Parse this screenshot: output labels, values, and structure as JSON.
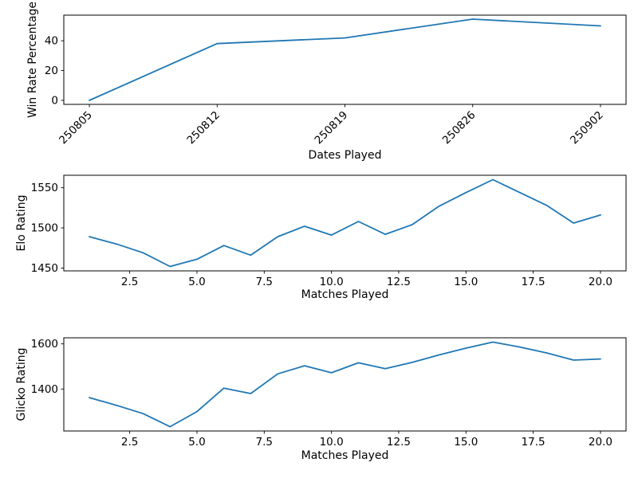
{
  "figure": {
    "background": "#ffffff",
    "line_color": "#1f77b4",
    "axis_color": "#000000"
  },
  "chart_data": [
    {
      "type": "line",
      "name": "win-rate-chart",
      "title": "",
      "xlabel": "Dates Played",
      "ylabel": "Win Rate Percentage",
      "x": [
        1,
        2,
        3,
        4,
        5
      ],
      "x_tick_labels": [
        "250805",
        "250812",
        "250819",
        "250826",
        "250902"
      ],
      "x_tick_rotation": 45,
      "y": [
        0.0,
        38.1,
        41.9,
        54.5,
        50.0
      ],
      "yticks": [
        0,
        20,
        40
      ],
      "xlim": [
        0.8,
        5.2
      ],
      "ylim": [
        -2.7,
        57.2
      ],
      "grid": false,
      "legend": null
    },
    {
      "type": "line",
      "name": "elo-rating-chart",
      "title": "",
      "xlabel": "Matches Played",
      "ylabel": "Elo Rating",
      "x": [
        1,
        2,
        3,
        4,
        5,
        6,
        7,
        8,
        9,
        10,
        11,
        12,
        13,
        14,
        15,
        16,
        17,
        18,
        19,
        20
      ],
      "xticks": [
        2.5,
        5.0,
        7.5,
        10.0,
        12.5,
        15.0,
        17.5,
        20.0
      ],
      "x_tick_labels": [
        "2.5",
        "5.0",
        "7.5",
        "10.0",
        "12.5",
        "15.0",
        "17.5",
        "20.0"
      ],
      "x_tick_rotation": 0,
      "y": [
        1489,
        1480,
        1469,
        1452,
        1461,
        1478,
        1466,
        1489,
        1502,
        1491,
        1508,
        1492,
        1504,
        1527,
        1544,
        1560,
        1544,
        1528,
        1506,
        1516
      ],
      "yticks": [
        1450,
        1500,
        1550
      ],
      "xlim": [
        0.05,
        20.95
      ],
      "ylim": [
        1446.5,
        1565.5
      ],
      "grid": false,
      "legend": null
    },
    {
      "type": "line",
      "name": "glicko-rating-chart",
      "title": "",
      "xlabel": "Matches Played",
      "ylabel": "Glicko Rating",
      "x": [
        1,
        2,
        3,
        4,
        5,
        6,
        7,
        8,
        9,
        10,
        11,
        12,
        13,
        14,
        15,
        16,
        17,
        18,
        19,
        20
      ],
      "xticks": [
        2.5,
        5.0,
        7.5,
        10.0,
        12.5,
        15.0,
        17.5,
        20.0
      ],
      "x_tick_labels": [
        "2.5",
        "5.0",
        "7.5",
        "10.0",
        "12.5",
        "15.0",
        "17.5",
        "20.0"
      ],
      "x_tick_rotation": 0,
      "y": [
        1362,
        1328,
        1291,
        1233,
        1300,
        1404,
        1380,
        1467,
        1503,
        1472,
        1516,
        1490,
        1518,
        1551,
        1581,
        1608,
        1586,
        1560,
        1528,
        1533
      ],
      "yticks": [
        1400,
        1600
      ],
      "xlim": [
        0.05,
        20.95
      ],
      "ylim": [
        1214,
        1627
      ],
      "grid": false,
      "legend": null
    }
  ]
}
